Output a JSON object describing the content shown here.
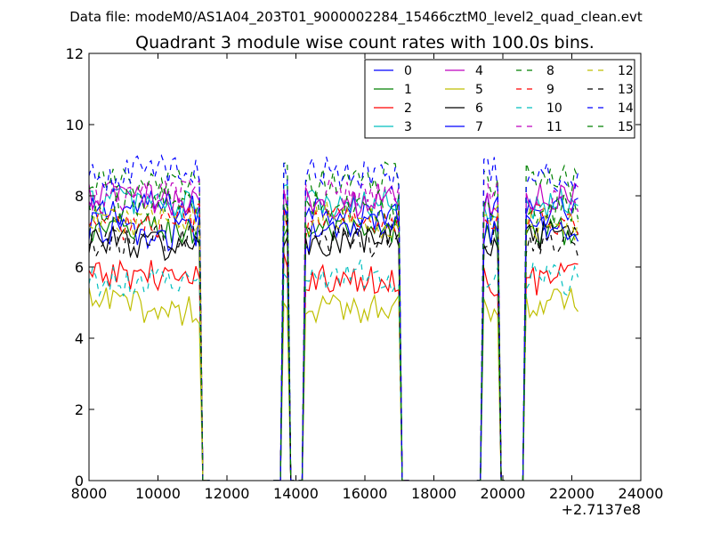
{
  "chart_data": {
    "type": "line",
    "suptitle": "Data file: modeM0/AS1A04_203T01_9000002284_15466cztM0_level2_quad_clean.evt",
    "title": "Quadrant 3 module wise count rates with 100.0s bins.",
    "xlabel": "",
    "ylabel": "",
    "x_offset_label": "+2.7137e8",
    "xlim": [
      8000,
      24000
    ],
    "ylim": [
      0,
      12
    ],
    "xticks": [
      8000,
      10000,
      12000,
      14000,
      16000,
      18000,
      20000,
      22000,
      24000
    ],
    "xtick_labels": [
      "8000",
      "10000",
      "12000",
      "14000",
      "16000",
      "18000",
      "20000",
      "22000",
      "24000"
    ],
    "yticks": [
      0,
      2,
      4,
      6,
      8,
      10,
      12
    ],
    "ytick_labels": [
      "0",
      "2",
      "4",
      "6",
      "8",
      "10",
      "12"
    ],
    "grid": false,
    "legend_position": "top-right",
    "legend_columns": 4,
    "x_step": 100,
    "segments": [
      {
        "start": 8000,
        "end": 11500,
        "on_start": 8000,
        "on_end": 11200
      },
      {
        "start": 13350,
        "end": 13980,
        "on_start": 13650,
        "on_end": 13820
      },
      {
        "start": 14080,
        "end": 17300,
        "on_start": 14280,
        "on_end": 17050
      },
      {
        "start": 19250,
        "end": 20120,
        "on_start": 19420,
        "on_end": 19940
      },
      {
        "start": 20580,
        "end": 22200,
        "on_start": 20680,
        "on_end": 22200
      }
    ],
    "series": [
      {
        "name": "0",
        "color": "#0000ff",
        "style": "solid",
        "level": 7.6
      },
      {
        "name": "1",
        "color": "#008000",
        "style": "solid",
        "level": 7.0
      },
      {
        "name": "2",
        "color": "#ff0000",
        "style": "solid",
        "level": 5.7
      },
      {
        "name": "3",
        "color": "#00bfbf",
        "style": "solid",
        "level": 7.8
      },
      {
        "name": "4",
        "color": "#bf00bf",
        "style": "solid",
        "level": 7.9
      },
      {
        "name": "5",
        "color": "#bfbf00",
        "style": "solid",
        "level": 4.9
      },
      {
        "name": "6",
        "color": "#000000",
        "style": "solid",
        "level": 6.7
      },
      {
        "name": "7",
        "color": "#0000ff",
        "style": "solid",
        "level": 7.0
      },
      {
        "name": "8",
        "color": "#008000",
        "style": "dashed",
        "level": 8.4
      },
      {
        "name": "9",
        "color": "#ff0000",
        "style": "dashed",
        "level": 7.3
      },
      {
        "name": "10",
        "color": "#00bfbf",
        "style": "dashed",
        "level": 5.7
      },
      {
        "name": "11",
        "color": "#bf00bf",
        "style": "dashed",
        "level": 8.0
      },
      {
        "name": "12",
        "color": "#bfbf00",
        "style": "dashed",
        "level": 7.3
      },
      {
        "name": "13",
        "color": "#000000",
        "style": "dashed",
        "level": 6.7
      },
      {
        "name": "14",
        "color": "#0000ff",
        "style": "dashed",
        "level": 8.6
      },
      {
        "name": "15",
        "color": "#008000",
        "style": "dashed",
        "level": 7.7
      }
    ]
  }
}
